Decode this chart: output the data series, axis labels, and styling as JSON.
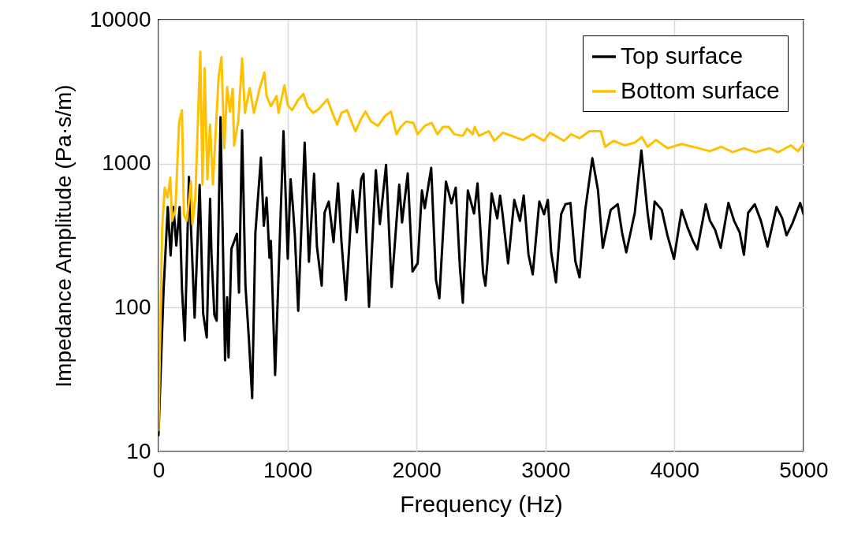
{
  "chart_data": {
    "type": "line",
    "xlabel": "Frequency (Hz)",
    "ylabel": "Impedance Amplitude (Pa·s/m)",
    "log": "y",
    "xlim": [
      0,
      5000
    ],
    "xticks": [
      0,
      1000,
      2000,
      3000,
      4000,
      5000
    ],
    "ylim": [
      10,
      10000
    ],
    "yticks": [
      10,
      100,
      1000,
      10000
    ],
    "grid": true,
    "legend": "top right",
    "marker": "none",
    "line_style": "solid",
    "series": [
      {
        "name": "Top surface",
        "color": "#000000",
        "x": [
          0,
          39,
          72,
          94,
          116,
          138,
          164,
          182,
          204,
          236,
          280,
          319,
          346,
          374,
          400,
          411,
          433,
          451,
          481,
          516,
          532,
          543,
          565,
          608,
          624,
          648,
          674,
          700,
          726,
          751,
          794,
          816,
          838,
          860,
          871,
          904,
          969,
          1002,
          1024,
          1042,
          1057,
          1083,
          1133,
          1166,
          1206,
          1228,
          1265,
          1287,
          1320,
          1357,
          1392,
          1418,
          1453,
          1505,
          1538,
          1571,
          1589,
          1632,
          1685,
          1716,
          1764,
          1807,
          1866,
          1888,
          1932,
          1969,
          2009,
          2042,
          2064,
          2114,
          2151,
          2177,
          2228,
          2271,
          2304,
          2337,
          2359,
          2398,
          2446,
          2473,
          2516,
          2534,
          2549,
          2582,
          2626,
          2648,
          2666,
          2710,
          2758,
          2802,
          2831,
          2868,
          2901,
          2952,
          2989,
          3018,
          3044,
          3081,
          3121,
          3154,
          3193,
          3231,
          3264,
          3308,
          3363,
          3407,
          3444,
          3505,
          3560,
          3593,
          3626,
          3692,
          3743,
          3791,
          3818,
          3846,
          3901,
          3945,
          3996,
          4055,
          4099,
          4143,
          4176,
          4242,
          4275,
          4314,
          4358,
          4418,
          4462,
          4505,
          4538,
          4571,
          4622,
          4670,
          4721,
          4791,
          4835,
          4868,
          4912,
          4974,
          5000
        ],
        "values": [
          13,
          130,
          500,
          230,
          500,
          270,
          500,
          135,
          59,
          810,
          85,
          710,
          91,
          62,
          570,
          230,
          89,
          81,
          2100,
          43,
          118,
          45,
          255,
          325,
          127,
          1700,
          142,
          62,
          23.5,
          330,
          1100,
          370,
          580,
          222,
          290,
          34,
          1680,
          218,
          780,
          500,
          318,
          95,
          1400,
          208,
          850,
          266,
          142,
          456,
          545,
          285,
          730,
          290,
          113,
          650,
          333,
          780,
          850,
          101,
          900,
          380,
          980,
          139,
          715,
          390,
          855,
          178,
          203,
          650,
          490,
          935,
          155,
          116,
          750,
          530,
          680,
          186,
          108,
          650,
          450,
          730,
          174,
          142,
          203,
          620,
          417,
          600,
          456,
          203,
          560,
          400,
          600,
          233,
          170,
          545,
          445,
          560,
          242,
          150,
          445,
          522,
          533,
          210,
          162,
          477,
          1090,
          650,
          260,
          477,
          522,
          333,
          242,
          456,
          1235,
          456,
          300,
          545,
          477,
          318,
          218,
          477,
          364,
          290,
          254,
          522,
          400,
          348,
          260,
          533,
          400,
          333,
          233,
          456,
          522,
          400,
          265,
          500,
          417,
          318,
          381,
          533,
          445
        ]
      },
      {
        "name": "Bottom surface",
        "color": "#ffc000",
        "x": [
          0,
          28,
          48,
          70,
          92,
          105,
          131,
          160,
          182,
          197,
          219,
          252,
          263,
          285,
          324,
          341,
          357,
          379,
          400,
          422,
          466,
          488,
          510,
          532,
          554,
          575,
          586,
          619,
          648,
          670,
          707,
          740,
          783,
          821,
          838,
          871,
          915,
          930,
          976,
          1002,
          1035,
          1079,
          1123,
          1155,
          1199,
          1243,
          1309,
          1352,
          1385,
          1418,
          1462,
          1505,
          1527,
          1571,
          1604,
          1648,
          1702,
          1757,
          1802,
          1845,
          1878,
          1921,
          1976,
          2009,
          2064,
          2118,
          2162,
          2206,
          2249,
          2293,
          2359,
          2392,
          2436,
          2451,
          2484,
          2560,
          2604,
          2670,
          2736,
          2824,
          2901,
          2989,
          3033,
          3143,
          3198,
          3264,
          3341,
          3429,
          3462,
          3527,
          3615,
          3692,
          3747,
          3791,
          3857,
          3945,
          4055,
          4187,
          4275,
          4363,
          4451,
          4538,
          4626,
          4736,
          4802,
          4901,
          4956,
          5000
        ],
        "values": [
          14,
          350,
          680,
          580,
          800,
          400,
          480,
          1950,
          2350,
          440,
          400,
          750,
          380,
          570,
          6000,
          715,
          4600,
          780,
          1870,
          715,
          4000,
          5500,
          1280,
          3400,
          2300,
          3300,
          1330,
          2000,
          5400,
          2250,
          3350,
          2250,
          3300,
          4300,
          2950,
          2500,
          2950,
          2250,
          3500,
          2550,
          2350,
          2750,
          3050,
          2500,
          2250,
          2400,
          2800,
          2200,
          1870,
          2250,
          2350,
          1870,
          1680,
          2050,
          2300,
          1960,
          1830,
          2150,
          2300,
          1600,
          1800,
          1960,
          1920,
          1600,
          1830,
          1920,
          1600,
          1800,
          1800,
          1600,
          1560,
          1750,
          1600,
          1800,
          1560,
          1680,
          1440,
          1640,
          1560,
          1460,
          1600,
          1440,
          1640,
          1440,
          1600,
          1500,
          1680,
          1680,
          1310,
          1440,
          1340,
          1400,
          1530,
          1310,
          1460,
          1280,
          1370,
          1280,
          1220,
          1310,
          1200,
          1280,
          1200,
          1280,
          1200,
          1340,
          1220,
          1370
        ]
      }
    ]
  }
}
